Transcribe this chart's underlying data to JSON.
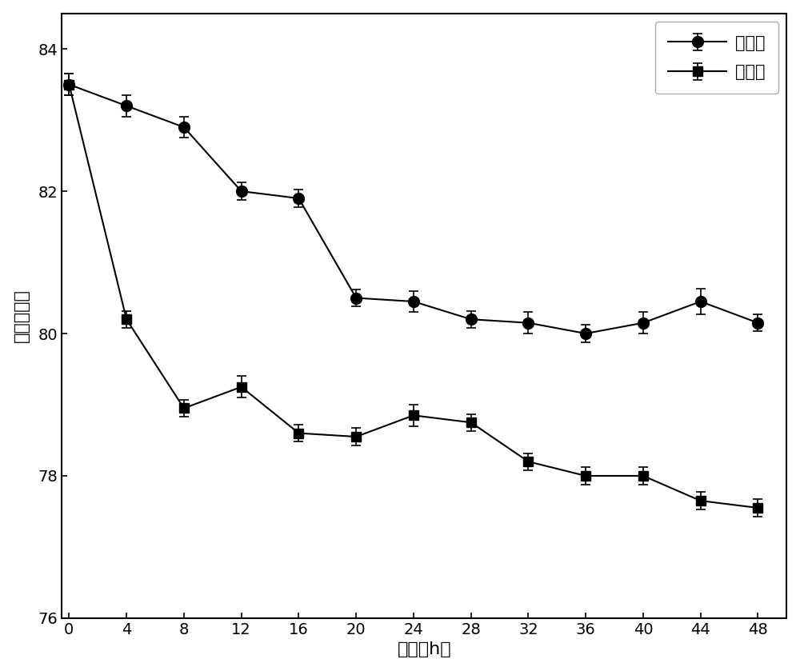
{
  "x": [
    0,
    4,
    8,
    12,
    16,
    20,
    24,
    28,
    32,
    36,
    40,
    44,
    48
  ],
  "control_y": [
    83.5,
    83.2,
    82.9,
    82.0,
    81.9,
    80.5,
    80.45,
    80.2,
    80.15,
    80.0,
    80.15,
    80.45,
    80.15
  ],
  "control_yerr": [
    0.15,
    0.15,
    0.15,
    0.12,
    0.12,
    0.12,
    0.15,
    0.12,
    0.15,
    0.12,
    0.15,
    0.18,
    0.12
  ],
  "exp_y": [
    83.5,
    80.2,
    78.95,
    79.25,
    78.6,
    78.55,
    78.85,
    78.75,
    78.2,
    78.0,
    78.0,
    77.65,
    77.55
  ],
  "exp_yerr": [
    0.15,
    0.12,
    0.12,
    0.15,
    0.12,
    0.12,
    0.15,
    0.12,
    0.12,
    0.12,
    0.12,
    0.12,
    0.12
  ],
  "xlabel": "时间（h）",
  "ylabel": "滤饵含水率",
  "legend_control": "对照组",
  "legend_exp": "实验组",
  "xlim": [
    -0.5,
    50
  ],
  "ylim": [
    76,
    84.5
  ],
  "yticks": [
    76,
    78,
    80,
    82,
    84
  ],
  "xticks": [
    0,
    4,
    8,
    12,
    16,
    20,
    24,
    28,
    32,
    36,
    40,
    44,
    48
  ],
  "line_color": "#000000",
  "marker_color": "#000000",
  "bg_color": "#ffffff",
  "fig_bg_color": "#ffffff",
  "tick_fontsize": 14,
  "label_fontsize": 16,
  "legend_fontsize": 15
}
